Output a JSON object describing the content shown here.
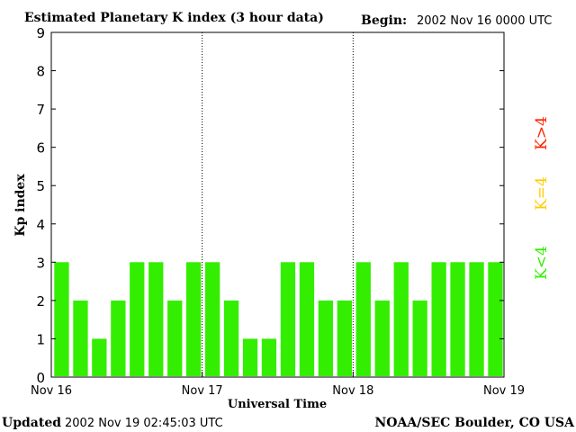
{
  "chart_data": {
    "type": "bar",
    "title": "Estimated Planetary K index (3 hour data)",
    "begin_label": "Begin:",
    "begin_value": "2002 Nov 16 0000 UTC",
    "xlabel": "Universal Time",
    "ylabel": "Kp index",
    "ylim": [
      0,
      9
    ],
    "yticks": [
      "0",
      "1",
      "2",
      "3",
      "4",
      "5",
      "6",
      "7",
      "8",
      "9"
    ],
    "xticks": [
      "Nov 16",
      "Nov 17",
      "Nov 18",
      "Nov 19"
    ],
    "day_dividers": true,
    "bars_per_day": 8,
    "values": [
      3,
      2,
      1,
      2,
      3,
      3,
      2,
      3,
      3,
      2,
      1,
      1,
      3,
      3,
      2,
      2,
      3,
      2,
      3,
      2,
      3,
      3,
      3,
      3
    ],
    "colors": {
      "below4": "#33ee00",
      "equal4": "#ffcc00",
      "above4": "#ff2200"
    },
    "legend": [
      {
        "text": "K<4",
        "color": "#33ee00"
      },
      {
        "text": "K=4",
        "color": "#ffcc00"
      },
      {
        "text": "K>4",
        "color": "#ff2200"
      }
    ]
  },
  "footer": {
    "updated_label": "Updated",
    "updated_value": "2002 Nov 19 02:45:03 UTC",
    "source": "NOAA/SEC Boulder, CO USA"
  }
}
